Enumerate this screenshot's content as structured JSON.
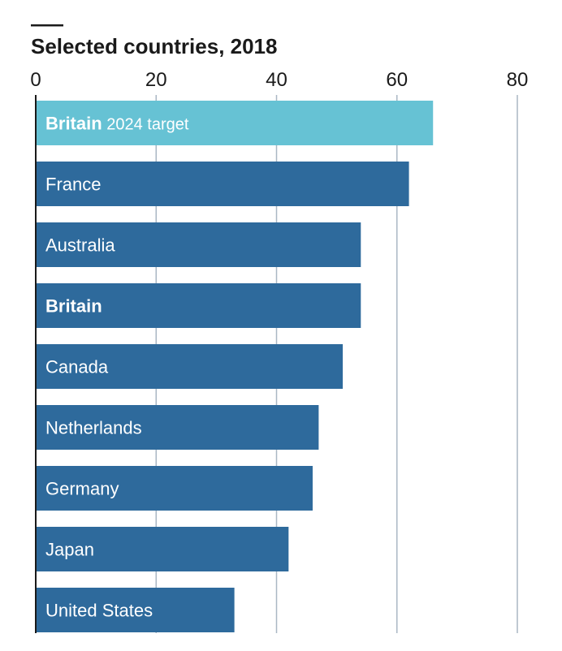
{
  "chart_data": {
    "type": "bar",
    "orientation": "horizontal",
    "title": "Selected countries, 2018",
    "xlabel": "",
    "ylabel": "",
    "xlim": [
      0,
      80
    ],
    "ticks": [
      0,
      20,
      40,
      60,
      80
    ],
    "tick_labels": [
      "0",
      "20",
      "40",
      "60",
      "80"
    ],
    "grid": "vertical",
    "bars": [
      {
        "label_bold": "Britain",
        "label": "2024 target",
        "value": 66,
        "highlight": true
      },
      {
        "label_bold": "",
        "label": "France",
        "value": 62,
        "highlight": false
      },
      {
        "label_bold": "",
        "label": "Australia",
        "value": 54,
        "highlight": false
      },
      {
        "label_bold": "Britain",
        "label": "",
        "value": 54,
        "highlight": false
      },
      {
        "label_bold": "",
        "label": "Canada",
        "value": 51,
        "highlight": false
      },
      {
        "label_bold": "",
        "label": "Netherlands",
        "value": 47,
        "highlight": false
      },
      {
        "label_bold": "",
        "label": "Germany",
        "value": 46,
        "highlight": false
      },
      {
        "label_bold": "",
        "label": "Japan",
        "value": 42,
        "highlight": false
      },
      {
        "label_bold": "",
        "label": "United States",
        "value": 33,
        "highlight": false
      }
    ]
  },
  "colors": {
    "bar": "#2e6a9c",
    "highlight_bar": "#66c2d4",
    "grid": "#aab7c4",
    "axis": "#1a1a1a",
    "text": "#1a1a1a",
    "bar_text": "#ffffff"
  }
}
